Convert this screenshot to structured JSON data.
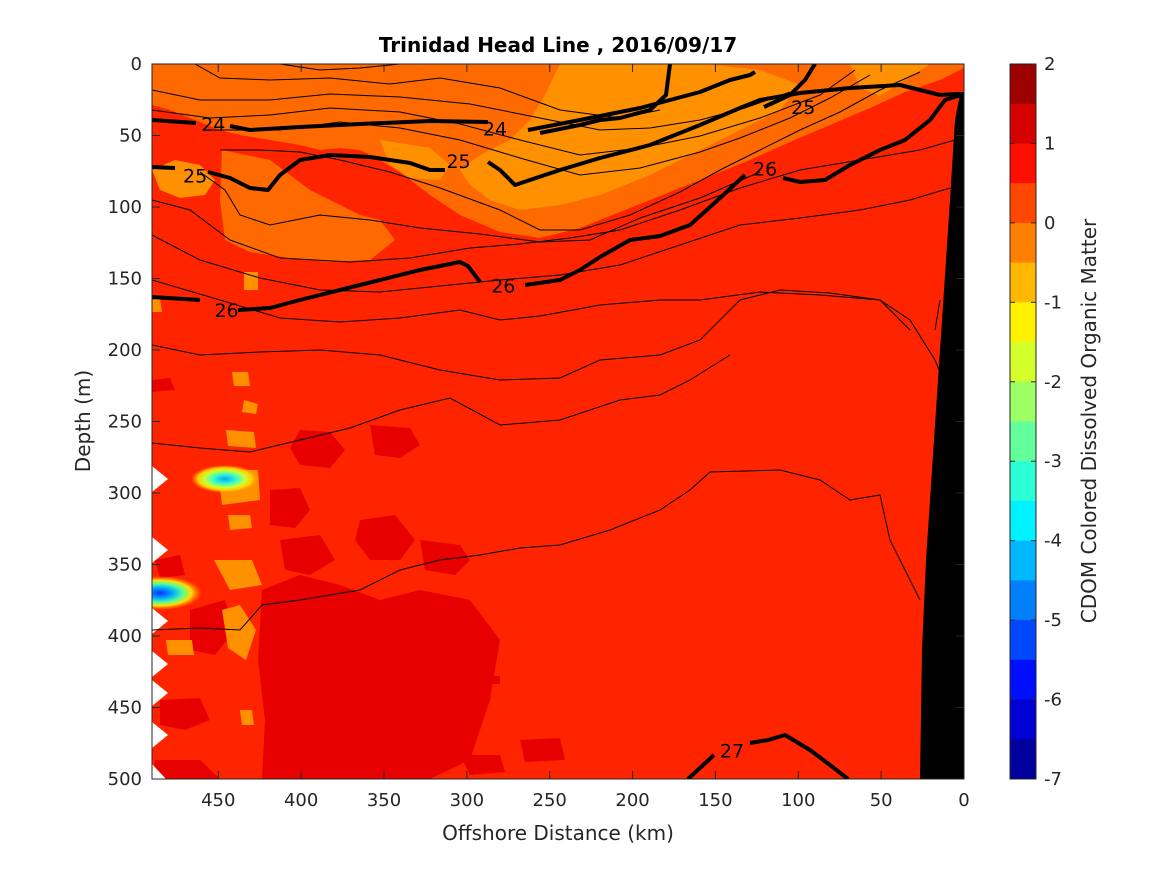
{
  "chart_data": {
    "type": "contour",
    "title": "Trinidad Head Line , 2016/09/17",
    "xlabel": "Offshore Distance (km)",
    "ylabel": "Depth (m)",
    "xlim": [
      490,
      0
    ],
    "ylim": [
      0,
      500
    ],
    "x_reversed": true,
    "y_reversed": true,
    "x_ticks": [
      450,
      400,
      350,
      300,
      250,
      200,
      150,
      100,
      50,
      0
    ],
    "y_ticks": [
      0,
      50,
      100,
      150,
      200,
      250,
      300,
      350,
      400,
      450,
      500
    ],
    "colorbar": {
      "label": "CDOM Colored Dissolved Organic Matter",
      "range": [
        -7,
        2
      ],
      "ticks": [
        2,
        1,
        0,
        -1,
        -2,
        -3,
        -4,
        -5,
        -6,
        -7
      ],
      "colormap": "jet"
    },
    "filled_field": {
      "description": "CDOM values",
      "background_value": 0.75,
      "high_patches_value": 1.25,
      "surface_layer_value": 0.25,
      "lens_value": -0.25,
      "low_anomalies": [
        {
          "x": 450,
          "depth": 290,
          "value": -3.5
        },
        {
          "x": 485,
          "depth": 370,
          "value": -5.0
        }
      ]
    },
    "density_contours": {
      "labeled_levels": [
        24,
        25,
        26,
        27
      ],
      "contour_labels": [
        {
          "text": "24",
          "x": 453,
          "depth": 42
        },
        {
          "text": "24",
          "x": 283,
          "depth": 45
        },
        {
          "text": "25",
          "x": 464,
          "depth": 78
        },
        {
          "text": "25",
          "x": 305,
          "depth": 68
        },
        {
          "text": "25",
          "x": 97,
          "depth": 30
        },
        {
          "text": "26",
          "x": 445,
          "depth": 172
        },
        {
          "text": "26",
          "x": 278,
          "depth": 155
        },
        {
          "text": "26",
          "x": 120,
          "depth": 73
        },
        {
          "text": "27",
          "x": 140,
          "depth": 480
        }
      ]
    },
    "bathymetry_color": "#000000"
  },
  "colors": {
    "background_field": "#ff2400",
    "high_patch": "#e80000",
    "surface_layer": "#ff6a00",
    "lens": "#ff9100"
  }
}
